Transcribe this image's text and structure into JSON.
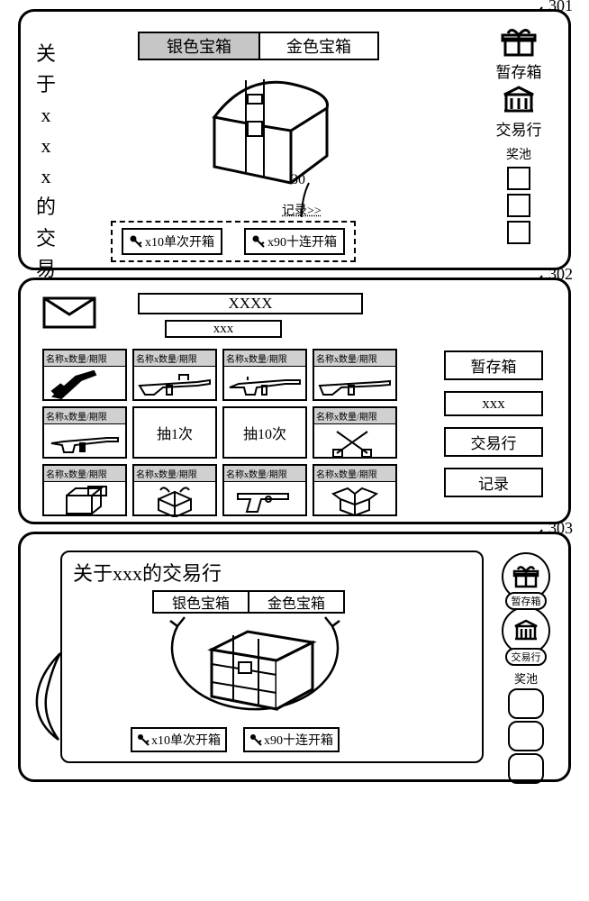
{
  "labels": {
    "p301": "301",
    "p302": "302",
    "p303": "303",
    "callout30": "30"
  },
  "p301": {
    "sideTitle": "关于xxx的交易行",
    "tabs": {
      "silver": "银色宝箱",
      "gold": "金色宝箱"
    },
    "recordLink": "记录>>",
    "draw": {
      "single": "x10单次开箱",
      "ten": "x90十连开箱"
    },
    "right": {
      "storage": "暂存箱",
      "market": "交易行",
      "pool": "奖池"
    }
  },
  "p302": {
    "title": "XXXX",
    "subtitle": "xxx",
    "itemHeader": "名称x数量/期限",
    "draw1": "抽1次",
    "draw10": "抽10次",
    "right": {
      "storage": "暂存箱",
      "xxx": "xxx",
      "market": "交易行",
      "log": "记录"
    }
  },
  "p303": {
    "title": "关于xxx的交易行",
    "tabs": {
      "silver": "银色宝箱",
      "gold": "金色宝箱"
    },
    "draw": {
      "single": "x10单次开箱",
      "ten": "x90十连开箱"
    },
    "right": {
      "storage": "暂存箱",
      "market": "交易行",
      "pool": "奖池"
    }
  },
  "colors": {
    "stroke": "#000000",
    "bg": "#ffffff",
    "tabActive": "#c6c6c6",
    "itemHead": "#d0d0d0"
  }
}
